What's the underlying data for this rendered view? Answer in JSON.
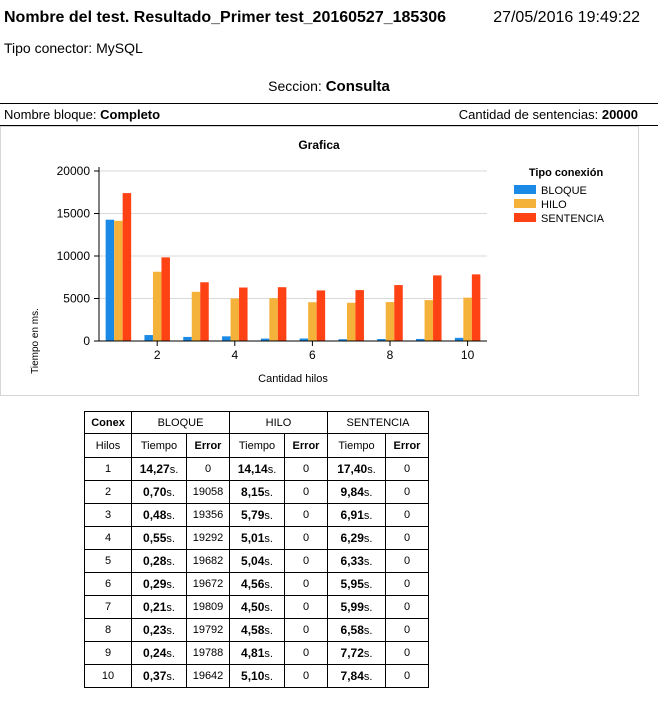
{
  "header": {
    "title": "Nombre del test. Resultado_Primer test_20160527_185306",
    "datetime": "27/05/2016 19:49:22",
    "connector_label": "Tipo conector: MySQL"
  },
  "section": {
    "label": "Seccion:",
    "value": "Consulta"
  },
  "block": {
    "name_label": "Nombre bloque:",
    "name_value": "Completo",
    "count_label": "Cantidad de sentencias:",
    "count_value": "20000"
  },
  "colors": {
    "bloque": "#1a8ae6",
    "hilo": "#f5b23a",
    "sentencia": "#ff4214"
  },
  "chart_data": {
    "type": "bar",
    "title": "Grafica",
    "xlabel": "Cantidad hilos",
    "ylabel": "Tiempo en ms.",
    "legend_title": "Tipo conexión",
    "legend_position": "right",
    "categories": [
      1,
      2,
      3,
      4,
      5,
      6,
      7,
      8,
      9,
      10
    ],
    "x_tick_labels": [
      "2",
      "4",
      "6",
      "8",
      "10"
    ],
    "y_ticks": [
      0,
      5000,
      10000,
      15000,
      20000
    ],
    "ylim": [
      0,
      20000
    ],
    "grid": true,
    "series": [
      {
        "name": "BLOQUE",
        "values": [
          14270,
          700,
          480,
          550,
          280,
          290,
          210,
          230,
          240,
          370
        ]
      },
      {
        "name": "HILO",
        "values": [
          14140,
          8150,
          5790,
          5010,
          5040,
          4560,
          4500,
          4580,
          4810,
          5100
        ]
      },
      {
        "name": "SENTENCIA",
        "values": [
          17400,
          9840,
          6910,
          6290,
          6330,
          5950,
          5990,
          6580,
          7720,
          7840
        ]
      }
    ]
  },
  "table": {
    "header_conex": "Conex",
    "header_hilos": "Hilos",
    "group_bloque": "BLOQUE",
    "group_hilo": "HILO",
    "group_sentencia": "SENTENCIA",
    "col_tiempo": "Tiempo",
    "col_error": "Error",
    "time_suffix": "s.",
    "rows": [
      {
        "hilos": "1",
        "bloque_t": "14,27",
        "bloque_e": "0",
        "hilo_t": "14,14",
        "hilo_e": "0",
        "sent_t": "17,40",
        "sent_e": "0"
      },
      {
        "hilos": "2",
        "bloque_t": "0,70",
        "bloque_e": "19058",
        "hilo_t": "8,15",
        "hilo_e": "0",
        "sent_t": "9,84",
        "sent_e": "0"
      },
      {
        "hilos": "3",
        "bloque_t": "0,48",
        "bloque_e": "19356",
        "hilo_t": "5,79",
        "hilo_e": "0",
        "sent_t": "6,91",
        "sent_e": "0"
      },
      {
        "hilos": "4",
        "bloque_t": "0,55",
        "bloque_e": "19292",
        "hilo_t": "5,01",
        "hilo_e": "0",
        "sent_t": "6,29",
        "sent_e": "0"
      },
      {
        "hilos": "5",
        "bloque_t": "0,28",
        "bloque_e": "19682",
        "hilo_t": "5,04",
        "hilo_e": "0",
        "sent_t": "6,33",
        "sent_e": "0"
      },
      {
        "hilos": "6",
        "bloque_t": "0,29",
        "bloque_e": "19672",
        "hilo_t": "4,56",
        "hilo_e": "0",
        "sent_t": "5,95",
        "sent_e": "0"
      },
      {
        "hilos": "7",
        "bloque_t": "0,21",
        "bloque_e": "19809",
        "hilo_t": "4,50",
        "hilo_e": "0",
        "sent_t": "5,99",
        "sent_e": "0"
      },
      {
        "hilos": "8",
        "bloque_t": "0,23",
        "bloque_e": "19792",
        "hilo_t": "4,58",
        "hilo_e": "0",
        "sent_t": "6,58",
        "sent_e": "0"
      },
      {
        "hilos": "9",
        "bloque_t": "0,24",
        "bloque_e": "19788",
        "hilo_t": "4,81",
        "hilo_e": "0",
        "sent_t": "7,72",
        "sent_e": "0"
      },
      {
        "hilos": "10",
        "bloque_t": "0,37",
        "bloque_e": "19642",
        "hilo_t": "5,10",
        "hilo_e": "0",
        "sent_t": "7,84",
        "sent_e": "0"
      }
    ]
  }
}
